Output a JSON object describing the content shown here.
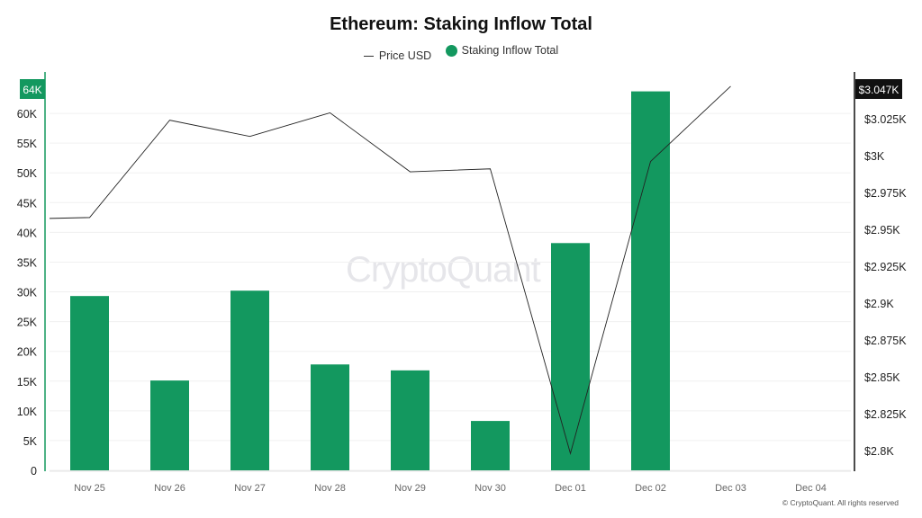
{
  "chart_data": {
    "type": "bar",
    "title": "Ethereum: Staking Inflow Total",
    "categories": [
      "Nov 25",
      "Nov 26",
      "Nov 27",
      "Nov 28",
      "Nov 29",
      "Nov 30",
      "Dec 01",
      "Dec 02",
      "Dec 03",
      "Dec 04"
    ],
    "series": [
      {
        "name": "Staking Inflow Total",
        "type": "bar",
        "axis": "left",
        "color": "#13985f",
        "values": [
          29300,
          15100,
          30200,
          17800,
          16800,
          8300,
          38200,
          63700,
          null,
          null
        ]
      },
      {
        "name": "Price USD",
        "type": "line",
        "axis": "right",
        "color": "#222222",
        "values": [
          2958,
          3024,
          3013,
          3029,
          2989,
          2991,
          2798,
          2996,
          3047,
          null
        ]
      }
    ],
    "left_axis": {
      "range": [
        0,
        65000
      ],
      "ticks": [
        "0",
        "5K",
        "10K",
        "15K",
        "20K",
        "25K",
        "30K",
        "35K",
        "40K",
        "45K",
        "50K",
        "55K",
        "60K"
      ],
      "highlight_label": "64K"
    },
    "right_axis": {
      "range": [
        2785,
        3060
      ],
      "ticks": [
        "$2.8K",
        "$2.825K",
        "$2.85K",
        "$2.875K",
        "$2.9K",
        "$2.925K",
        "$2.95K",
        "$2.975K",
        "$3K",
        "$3.025K"
      ],
      "highlight_label": "$3.047K"
    },
    "grid": true,
    "legend": "top-center",
    "legend_entries": [
      "Price USD",
      "Staking Inflow Total"
    ]
  },
  "watermark": "CryptoQuant",
  "copyright": "© CryptoQuant. All rights reserved"
}
